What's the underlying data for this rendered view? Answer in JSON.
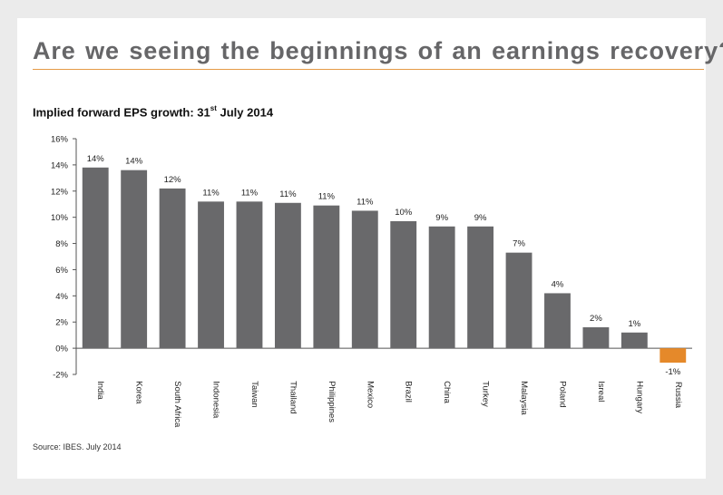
{
  "slide": {
    "title": "Are we seeing the beginnings of an earnings recovery?",
    "subtitle_main": "Implied forward EPS growth: 31",
    "subtitle_sup": "st",
    "subtitle_end": "July 2014",
    "source": "Source: IBES.  July 2014"
  },
  "colors": {
    "bar": "#69696b",
    "negative_bar": "#e5892a",
    "rule": "#e69a46",
    "title": "#666668"
  },
  "chart_data": {
    "type": "bar",
    "title": "Implied forward EPS growth: 31st July 2014",
    "xlabel": "",
    "ylabel": "",
    "ylim": [
      -2,
      16
    ],
    "yticks": [
      -2,
      0,
      2,
      4,
      6,
      8,
      10,
      12,
      14,
      16
    ],
    "ytick_labels": [
      "-2%",
      "0%",
      "2%",
      "4%",
      "6%",
      "8%",
      "10%",
      "12%",
      "14%",
      "16%"
    ],
    "grid": false,
    "categories": [
      "India",
      "Korea",
      "South Africa",
      "Indonesia",
      "Taiwan",
      "Thailand",
      "Philippines",
      "Mexico",
      "Brazil",
      "China",
      "Turkey",
      "Malaysia",
      "Poland",
      "Isreal",
      "Hungary",
      "Russia"
    ],
    "values": [
      13.8,
      13.6,
      12.2,
      11.2,
      11.2,
      11.1,
      10.9,
      10.5,
      9.7,
      9.3,
      9.3,
      7.3,
      4.2,
      1.6,
      1.2,
      -1.1
    ],
    "data_labels": [
      "14%",
      "14%",
      "12%",
      "11%",
      "11%",
      "11%",
      "11%",
      "11%",
      "10%",
      "9%",
      "9%",
      "7%",
      "4%",
      "2%",
      "1%",
      "-1%"
    ]
  }
}
